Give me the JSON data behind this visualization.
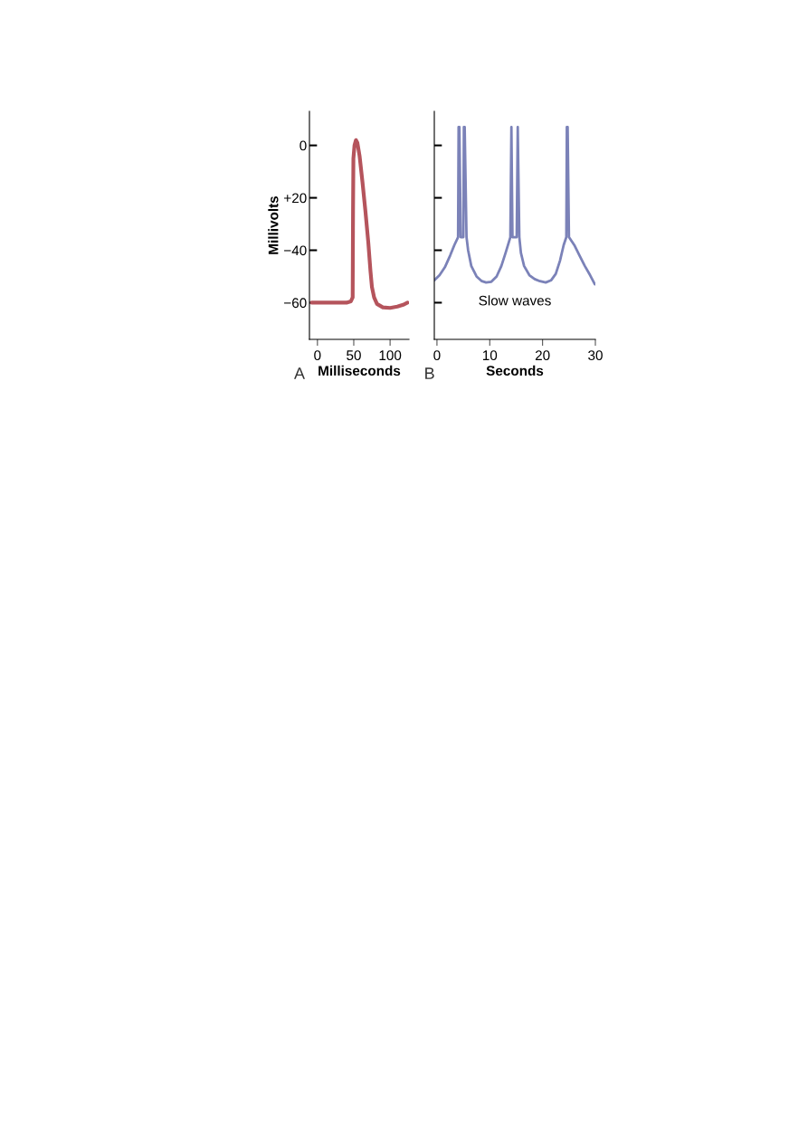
{
  "chart_data": [
    {
      "type": "line",
      "xlabel": "Milliseconds",
      "ylabel": "Millivolts",
      "annotations": [
        "A"
      ],
      "xlim": [
        -11,
        126
      ],
      "ylim": [
        -74,
        13
      ],
      "xticks": [
        0,
        50,
        100
      ],
      "yticks": [
        0,
        {
          "value": -20,
          "label": "+20"
        },
        {
          "value": -40,
          "label": "−40"
        },
        {
          "value": -60,
          "label": "−60"
        }
      ],
      "grid": false,
      "legend": false,
      "marker": "none",
      "line_style": "solid",
      "series": [
        {
          "color": "#b5545c",
          "x": [
            -8,
            20,
            40,
            46,
            48.5,
            49,
            49.5,
            51,
            53,
            55,
            58,
            62,
            66,
            70,
            73,
            75,
            78,
            82,
            90,
            100,
            110,
            118,
            124
          ],
          "values": [
            -60,
            -60,
            -60,
            -59.5,
            -58,
            -25,
            -5,
            0,
            2,
            1,
            -4,
            -14,
            -25,
            -37,
            -48,
            -54,
            -58,
            -60.5,
            -61.8,
            -62,
            -61.5,
            -60.8,
            -60
          ]
        }
      ]
    },
    {
      "type": "line",
      "xlabel": "Seconds",
      "annotations": [
        "B",
        "Slow waves"
      ],
      "xlim": [
        -0.5,
        30
      ],
      "ylim": [
        -74,
        13
      ],
      "xticks": [
        0,
        10,
        20,
        30
      ],
      "yticks": [
        {
          "value": 0,
          "label": null
        },
        {
          "value": -20,
          "label": null
        },
        {
          "value": -40,
          "label": null
        },
        {
          "value": -60,
          "label": null
        }
      ],
      "tick_labels": "x",
      "grid": false,
      "legend": false,
      "marker": "none",
      "line_style": "solid",
      "series": [
        {
          "color": "#7b82b8",
          "x": [
            -0.5,
            0.5,
            1.5,
            2.5,
            3.3,
            4.0,
            4.1,
            4.25,
            4.5,
            5.0,
            5.1,
            5.25,
            5.6,
            5.9,
            6.5,
            7.5,
            8.5,
            9.3,
            10.3,
            11.3,
            12.2,
            13.0,
            13.6,
            13.9,
            14.1,
            14.3,
            15.1,
            15.3,
            15.6,
            15.9,
            16.5,
            17.5,
            18.5,
            19.5,
            20.6,
            21.6,
            22.5,
            23.3,
            24.0,
            24.5,
            24.6,
            24.75,
            25.0,
            26.0,
            27.0,
            28.0,
            29.0,
            29.9
          ],
          "values": [
            -51.5,
            -49.5,
            -46.5,
            -42,
            -38,
            -35,
            7,
            7,
            -35,
            -35,
            7,
            7,
            -35,
            -40,
            -46,
            -50,
            -51.8,
            -52.3,
            -52,
            -50,
            -46,
            -41,
            -37,
            -35,
            7,
            -35,
            -35,
            7,
            -35,
            -41,
            -46,
            -49.5,
            -51,
            -51.8,
            -52.3,
            -51.5,
            -49,
            -44,
            -38,
            -35,
            7,
            7,
            -35,
            -38,
            -42,
            -46,
            -49.5,
            -53
          ]
        }
      ]
    }
  ]
}
